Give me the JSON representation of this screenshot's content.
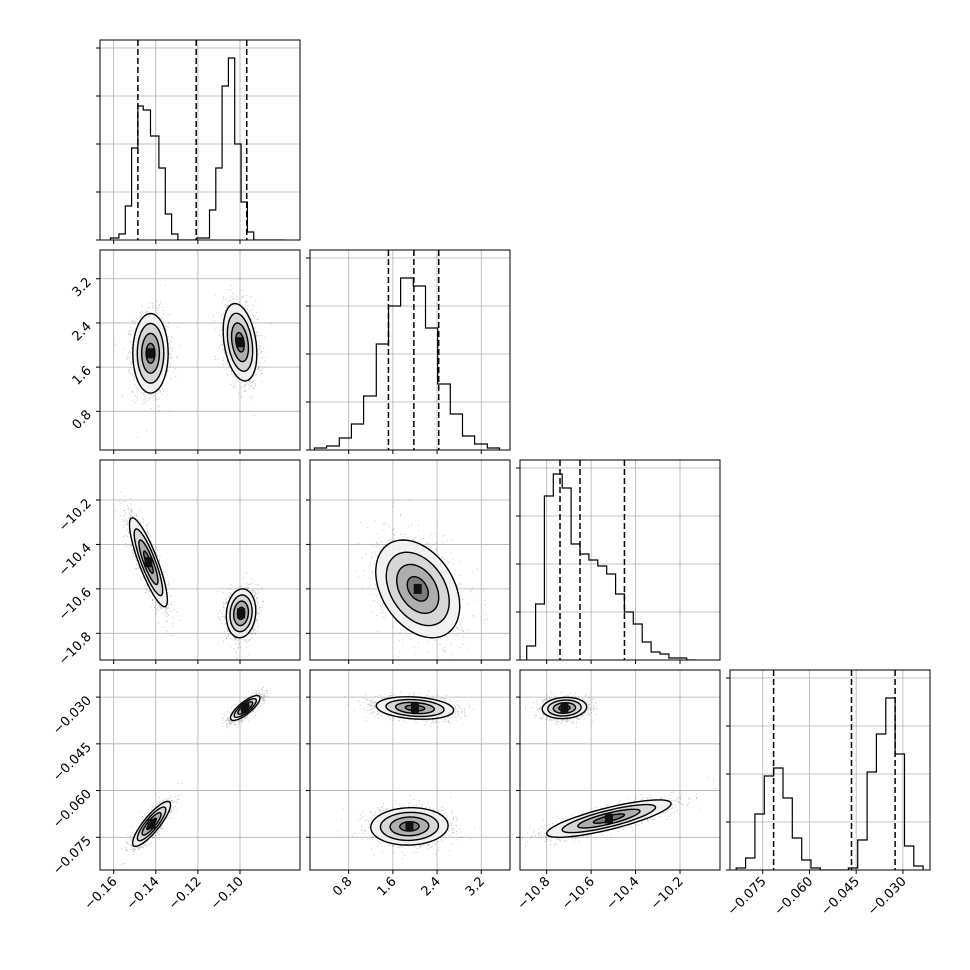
{
  "chart_data": {
    "type": "corner",
    "grid": true,
    "dims": 4,
    "axes": [
      {
        "ticks": [
          -0.16,
          -0.14,
          -0.12,
          -0.1
        ],
        "tick_labels": [
          "−0.16",
          "−0.14",
          "−0.12",
          "−0.10"
        ],
        "range": [
          -0.1665,
          -0.0715
        ]
      },
      {
        "ticks": [
          0.8,
          1.6,
          2.4,
          3.2
        ],
        "tick_labels": [
          "0.8",
          "1.6",
          "2.4",
          "3.2"
        ],
        "range": [
          0.1,
          3.72
        ]
      },
      {
        "ticks": [
          -10.8,
          -10.6,
          -10.4,
          -10.2
        ],
        "tick_labels": [
          "−10.8",
          "−10.6",
          "−10.4",
          "−10.2"
        ],
        "range": [
          -10.92,
          -10.02
        ]
      },
      {
        "ticks": [
          -0.075,
          -0.06,
          -0.045,
          -0.03
        ],
        "tick_labels": [
          "−0.075",
          "−0.060",
          "−0.045",
          "−0.030"
        ],
        "range": [
          -0.0855,
          -0.0213
        ]
      }
    ],
    "quantiles": [
      [
        -0.1485,
        -0.1208,
        -0.0968
      ],
      [
        1.52,
        1.98,
        2.43
      ],
      [
        -10.74,
        -10.65,
        -10.45
      ],
      [
        -0.0715,
        -0.0465,
        -0.0325
      ]
    ],
    "histograms": [
      {
        "edges": [
          -0.1615,
          -0.1575,
          -0.1545,
          -0.1515,
          -0.1485,
          -0.146,
          -0.1425,
          -0.1385,
          -0.1355,
          -0.1325,
          -0.1295,
          -0.1265,
          -0.1235,
          -0.1205,
          -0.1175,
          -0.1145,
          -0.1115,
          -0.1085,
          -0.1055,
          -0.1025,
          -0.0995,
          -0.0965,
          -0.0935,
          -0.0905,
          -0.0875,
          -0.0795
        ],
        "counts": [
          0.01,
          0.03,
          0.17,
          0.46,
          0.67,
          0.65,
          0.52,
          0.36,
          0.13,
          0.03,
          0.0,
          0.0,
          0.0,
          0.01,
          0.01,
          0.15,
          0.36,
          0.77,
          0.91,
          0.48,
          0.19,
          0.04,
          0.0,
          0.0,
          0.0
        ],
        "ymax": 1.0
      },
      {
        "edges": [
          0.18,
          0.4,
          0.63,
          0.85,
          1.07,
          1.3,
          1.52,
          1.74,
          1.97,
          2.19,
          2.41,
          2.64,
          2.86,
          3.08,
          3.31,
          3.53
        ],
        "counts": [
          0.01,
          0.02,
          0.06,
          0.13,
          0.27,
          0.53,
          0.72,
          0.86,
          0.82,
          0.61,
          0.33,
          0.18,
          0.07,
          0.03,
          0.01
        ],
        "ymax": 1.0
      },
      {
        "edges": [
          -10.89,
          -10.85,
          -10.81,
          -10.77,
          -10.73,
          -10.69,
          -10.65,
          -10.61,
          -10.57,
          -10.53,
          -10.49,
          -10.45,
          -10.41,
          -10.37,
          -10.33,
          -10.29,
          -10.25,
          -10.21,
          -10.17,
          -10.13
        ],
        "counts": [
          0.07,
          0.28,
          0.82,
          0.93,
          0.86,
          0.58,
          0.53,
          0.5,
          0.47,
          0.43,
          0.33,
          0.24,
          0.18,
          0.09,
          0.04,
          0.03,
          0.01,
          0.01,
          0.0
        ],
        "ymax": 1.0
      },
      {
        "edges": [
          -0.0835,
          -0.0805,
          -0.0775,
          -0.0745,
          -0.0715,
          -0.0685,
          -0.0655,
          -0.0625,
          -0.0595,
          -0.0565,
          -0.0535,
          -0.0505,
          -0.0475,
          -0.0445,
          -0.0415,
          -0.0385,
          -0.0355,
          -0.0325,
          -0.0295,
          -0.0265,
          -0.0235
        ],
        "counts": [
          0.01,
          0.06,
          0.28,
          0.47,
          0.51,
          0.36,
          0.16,
          0.05,
          0.01,
          0.0,
          0.0,
          0.0,
          0.01,
          0.15,
          0.49,
          0.68,
          0.86,
          0.58,
          0.12,
          0.02
        ],
        "ymax": 1.0
      }
    ],
    "pair_clusters": {
      "1-0": [
        {
          "cx": -0.1425,
          "cy": 1.85,
          "sx": 0.0042,
          "sy": 0.36,
          "r": 0.0
        },
        {
          "cx": -0.1,
          "cy": 2.05,
          "sx": 0.004,
          "sy": 0.35,
          "r": -0.3
        }
      ],
      "2-0": [
        {
          "cx": -0.1435,
          "cy": -10.48,
          "sx": 0.0045,
          "sy": 0.1,
          "r": -0.85
        },
        {
          "cx": -0.0995,
          "cy": -10.71,
          "sx": 0.0035,
          "sy": 0.055,
          "r": 0.1
        }
      ],
      "2-1": [
        {
          "cx": 2.05,
          "cy": -10.6,
          "sx": 0.38,
          "sy": 0.11,
          "r": -0.35
        }
      ],
      "3-0": [
        {
          "cx": -0.142,
          "cy": -0.0707,
          "sx": 0.0045,
          "sy": 0.0036,
          "r": 0.85
        },
        {
          "cx": -0.0975,
          "cy": -0.0335,
          "sx": 0.0035,
          "sy": 0.002,
          "r": 0.8
        }
      ],
      "3-1": [
        {
          "cx": 2.0,
          "cy": -0.0335,
          "sx": 0.35,
          "sy": 0.0018,
          "r": -0.2
        },
        {
          "cx": 1.9,
          "cy": -0.0715,
          "sx": 0.35,
          "sy": 0.003,
          "r": 0.05
        }
      ],
      "3-2": [
        {
          "cx": -10.72,
          "cy": -0.0335,
          "sx": 0.05,
          "sy": 0.0017,
          "r": 0.1
        },
        {
          "cx": -10.52,
          "cy": -0.069,
          "sx": 0.14,
          "sy": 0.003,
          "r": 0.8
        }
      ]
    },
    "contour_levels_sigma": [
      0.5,
      1.0,
      1.5,
      2.0
    ]
  }
}
